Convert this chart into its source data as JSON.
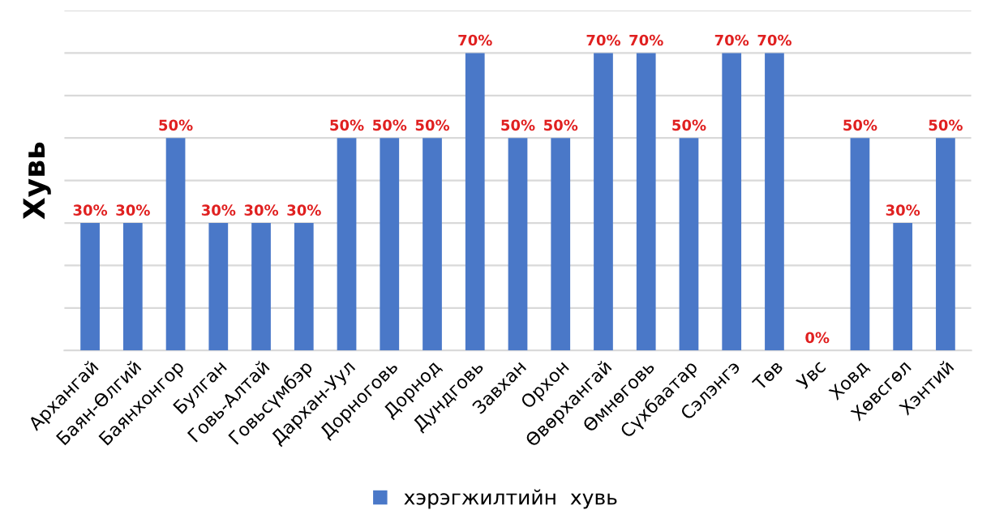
{
  "chart_data": {
    "type": "bar",
    "ylabel": "Хувь",
    "categories": [
      "Архангай",
      "Баян-Өлгий",
      "Баянхонгор",
      "Булган",
      "Говь-Алтай",
      "Говьсүмбэр",
      "Дархан-Уул",
      "Дорноговь",
      "Дорнод",
      "Дундговь",
      "Завхан",
      "Орхон",
      "Өвөрхангай",
      "Өмнөговь",
      "Сүхбаатар",
      "Сэлэнгэ",
      "Төв",
      "Увс",
      "Ховд",
      "Хөвсгөл",
      "Хэнтий"
    ],
    "series": [
      {
        "name": "хэрэгжилтийн  хувь",
        "color": "#4a78c8",
        "values": [
          30,
          30,
          50,
          30,
          30,
          30,
          50,
          50,
          50,
          70,
          50,
          50,
          70,
          70,
          50,
          70,
          70,
          0,
          50,
          30,
          50
        ],
        "value_labels": [
          "30%",
          "30%",
          "50%",
          "30%",
          "30%",
          "30%",
          "50%",
          "50%",
          "50%",
          "70%",
          "50%",
          "50%",
          "70%",
          "70%",
          "50%",
          "70%",
          "70%",
          "0%",
          "50%",
          "30%",
          "50%"
        ]
      }
    ],
    "ylim": [
      0,
      80
    ],
    "yticks": [
      {
        "value": 0,
        "label": null
      },
      {
        "value": 10,
        "label": null
      },
      {
        "value": 20,
        "label": null
      },
      {
        "value": 30,
        "label": null
      },
      {
        "value": 40,
        "label": null
      },
      {
        "value": 50,
        "label": null
      },
      {
        "value": 60,
        "label": null
      },
      {
        "value": 70,
        "label": null
      },
      {
        "value": 80,
        "label": null
      }
    ],
    "grid": "y",
    "legend": "bottom",
    "tick_labels": "x"
  }
}
